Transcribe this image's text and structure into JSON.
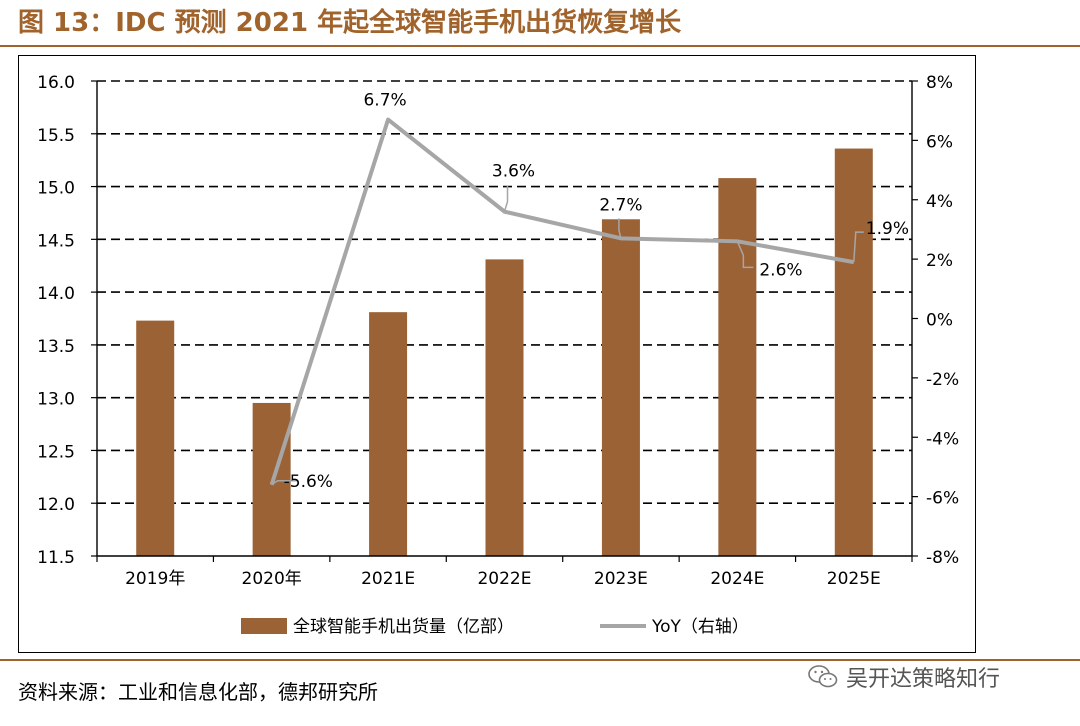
{
  "header": {
    "title": "图 13：IDC 预测 2021 年起全球智能手机出货恢复增长"
  },
  "footer": {
    "source": "资料来源：工业和信息化部，德邦研究所",
    "brand": "吴开达策略知行"
  },
  "colors": {
    "accent": "#a0632c",
    "bar": "#9b6236",
    "line": "#a6a6a6"
  },
  "chart_data": {
    "type": "bar",
    "categories": [
      "2019年",
      "2020年",
      "2021E",
      "2022E",
      "2023E",
      "2024E",
      "2025E"
    ],
    "series": [
      {
        "name": "全球智能手机出货量（亿部）",
        "type": "bar",
        "axis": "left",
        "values": [
          13.73,
          12.95,
          13.81,
          14.31,
          14.69,
          15.08,
          15.36
        ]
      },
      {
        "name": "YoY（右轴）",
        "type": "line",
        "axis": "right",
        "values": [
          null,
          -5.6,
          6.7,
          3.6,
          2.7,
          2.6,
          1.9
        ],
        "data_labels": [
          "",
          "-5.6%",
          "6.7%",
          "3.6%",
          "2.7%",
          "2.6%",
          "1.9%"
        ]
      }
    ],
    "y_left": {
      "min": 11.5,
      "max": 16.0,
      "ticks": [
        "11.5",
        "12.0",
        "12.5",
        "13.0",
        "13.5",
        "14.0",
        "14.5",
        "15.0",
        "15.5",
        "16.0"
      ]
    },
    "y_right": {
      "min": -8,
      "max": 8,
      "ticks": [
        "-8%",
        "-6%",
        "-4%",
        "-2%",
        "0%",
        "2%",
        "4%",
        "6%",
        "8%"
      ]
    },
    "grid": "dashed-horizontal",
    "legend": "bottom-center"
  }
}
